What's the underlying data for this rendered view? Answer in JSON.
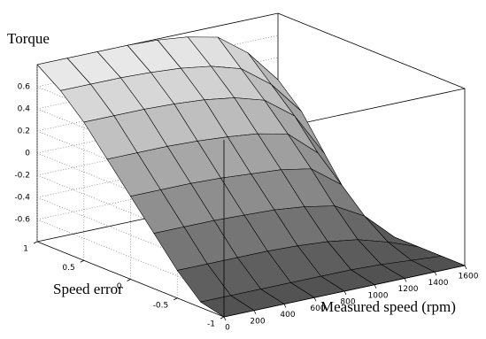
{
  "chart_data": {
    "type": "surface",
    "zlabel": "Torque",
    "xlabel": "Speed error",
    "ylabel": "Measured speed (rpm)",
    "x": [
      -1,
      -0.75,
      -0.5,
      -0.25,
      0,
      0.25,
      0.5,
      0.75,
      1
    ],
    "y": [
      0,
      200,
      400,
      600,
      800,
      1000,
      1200,
      1400,
      1600
    ],
    "z": [
      [
        -0.8,
        -0.8,
        -0.8,
        -0.8,
        -0.8,
        -0.8,
        -0.8,
        -0.8,
        -0.8
      ],
      [
        -0.75,
        -0.75,
        -0.75,
        -0.75,
        -0.75,
        -0.75,
        -0.76,
        -0.78,
        -0.8
      ],
      [
        -0.55,
        -0.55,
        -0.55,
        -0.55,
        -0.56,
        -0.58,
        -0.62,
        -0.7,
        -0.8
      ],
      [
        -0.3,
        -0.3,
        -0.3,
        -0.31,
        -0.32,
        -0.35,
        -0.4,
        -0.55,
        -0.8
      ],
      [
        -0.05,
        -0.05,
        -0.05,
        -0.06,
        -0.08,
        -0.1,
        -0.15,
        -0.35,
        -0.8
      ],
      [
        0.2,
        0.2,
        0.2,
        0.19,
        0.17,
        0.14,
        0.08,
        -0.15,
        -0.6
      ],
      [
        0.45,
        0.45,
        0.45,
        0.44,
        0.42,
        0.38,
        0.3,
        0.1,
        -0.3
      ],
      [
        0.65,
        0.65,
        0.65,
        0.64,
        0.62,
        0.58,
        0.5,
        0.3,
        0
      ],
      [
        0.8,
        0.8,
        0.8,
        0.8,
        0.79,
        0.76,
        0.7,
        0.5,
        0.2
      ]
    ],
    "xlim": [
      -1,
      1
    ],
    "xticks": [
      -1,
      -0.5,
      0,
      0.5,
      1
    ],
    "ylim": [
      0,
      1600
    ],
    "yticks": [
      0,
      200,
      400,
      600,
      800,
      1000,
      1200,
      1400,
      1600
    ],
    "zlim": [
      -0.8,
      0.8
    ],
    "zticks": [
      -0.6,
      -0.4,
      -0.2,
      0,
      0.2,
      0.4,
      0.6
    ],
    "grid": true
  }
}
